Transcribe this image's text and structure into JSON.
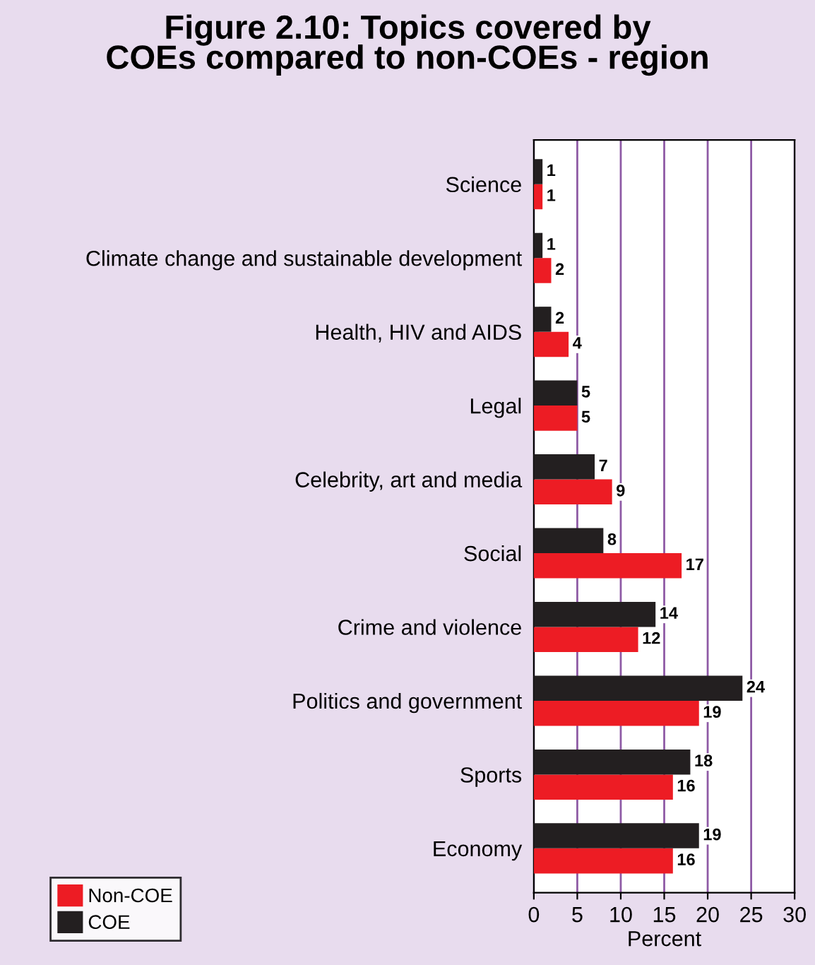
{
  "chart_data": {
    "type": "bar",
    "orientation": "horizontal",
    "title": "Figure 2.10: Topics covered by\nCOEs compared to non-COEs - region",
    "categories": [
      "Science",
      "Climate change and sustainable development",
      "Health, HIV and AIDS",
      "Legal",
      "Celebrity, art and media",
      "Social",
      "Crime and violence",
      "Politics and government",
      "Sports",
      "Economy"
    ],
    "series": [
      {
        "name": "Non-COE",
        "color": "#ed1c24",
        "values": [
          1,
          2,
          4,
          5,
          9,
          17,
          12,
          19,
          16,
          16
        ]
      },
      {
        "name": "COE",
        "color": "#231f20",
        "values": [
          1,
          1,
          2,
          5,
          7,
          8,
          14,
          24,
          18,
          19
        ]
      }
    ],
    "xlabel": "Percent",
    "xlim": [
      0,
      30
    ],
    "xticks": [
      0,
      5,
      10,
      15,
      20,
      25,
      30
    ],
    "grid": "x",
    "legend": "bottom left",
    "data_labels": true
  }
}
